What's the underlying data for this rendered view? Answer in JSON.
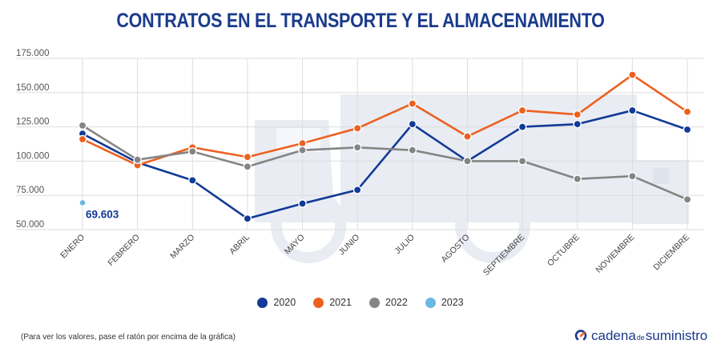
{
  "brand": {
    "name_part1": "cadena",
    "name_part2": "de",
    "name_part3": "suministro"
  },
  "footnote": "(Para ver los valores, pase el ratón por encima de la gráfica)",
  "colors": {
    "2020": "#123a96",
    "2021": "#ec6120",
    "2022": "#858585",
    "2023": "#6bb8e4",
    "title": "#1a3a8c",
    "grid": "#dddddd",
    "watermark": "#e9ecf3"
  },
  "chart_data": {
    "type": "line",
    "title": "CONTRATOS EN EL TRANSPORTE Y EL ALMACENAMIENTO",
    "xlabel": "",
    "ylabel": "",
    "categories": [
      "ENERO",
      "FEBRERO",
      "MARZO",
      "ABRIL",
      "MAYO",
      "JUNIO",
      "JULIO",
      "AGOSTO",
      "SEPTIEMBRE",
      "OCTUBRE",
      "NOVIEMBRE",
      "DICIEMBRE"
    ],
    "ylim": [
      50000,
      175000
    ],
    "yticks": [
      50000,
      75000,
      100000,
      125000,
      150000,
      175000
    ],
    "ytick_labels": [
      "50.000",
      "75.000",
      "100.000",
      "125.000",
      "150.000",
      "175.000"
    ],
    "grid": true,
    "legend_position": "bottom",
    "series": [
      {
        "name": "2020",
        "values": [
          120000,
          99000,
          86000,
          58000,
          69000,
          79000,
          127000,
          100000,
          125000,
          127000,
          137000,
          123000
        ]
      },
      {
        "name": "2021",
        "values": [
          116000,
          97000,
          110000,
          103000,
          113000,
          124000,
          142000,
          118000,
          137000,
          134000,
          163000,
          136000
        ]
      },
      {
        "name": "2022",
        "values": [
          126000,
          101000,
          107000,
          96000,
          108000,
          110000,
          108000,
          100000,
          100000,
          87000,
          89000,
          72000
        ]
      },
      {
        "name": "2023",
        "values": [
          69603,
          null,
          null,
          null,
          null,
          null,
          null,
          null,
          null,
          null,
          null,
          null
        ]
      }
    ],
    "annotations": [
      {
        "series": "2023",
        "category": "ENERO",
        "label": "69.603"
      }
    ]
  }
}
